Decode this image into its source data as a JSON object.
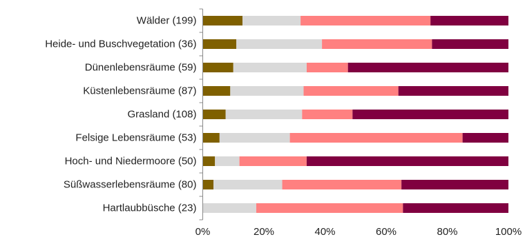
{
  "chart_data": {
    "type": "bar",
    "orientation": "horizontal",
    "stacked": true,
    "categories": [
      "Wälder (199)",
      "Heide- und Buschvegetation (36)",
      "Dünenlebensräume (59)",
      "Küstenlebensräume (87)",
      "Grasland (108)",
      "Felsige Lebensräume (53)",
      "Hoch- und Niedermoore (50)",
      "Süßwasserlebensräume (80)",
      "Hartlaubbüsche (23)"
    ],
    "series": [
      {
        "color": "#7f6000",
        "values": [
          13,
          11,
          10,
          9,
          7.5,
          5.5,
          4,
          3.5,
          0
        ]
      },
      {
        "color": "#d9d9d9",
        "values": [
          19,
          28,
          24,
          24,
          25,
          23,
          8,
          22.5,
          17.5
        ]
      },
      {
        "color": "#ff8080",
        "values": [
          42.5,
          36,
          13.5,
          31,
          16.5,
          56.5,
          22,
          39,
          48
        ]
      },
      {
        "color": "#800040",
        "values": [
          25.5,
          25,
          52.5,
          36,
          51,
          15,
          66,
          35,
          34.5
        ]
      }
    ],
    "xticks": [
      "0%",
      "20%",
      "40%",
      "60%",
      "80%",
      "100%"
    ],
    "xlim": [
      0,
      100
    ],
    "title": "",
    "xlabel": "",
    "ylabel": "",
    "grid": false,
    "legend": "none"
  }
}
